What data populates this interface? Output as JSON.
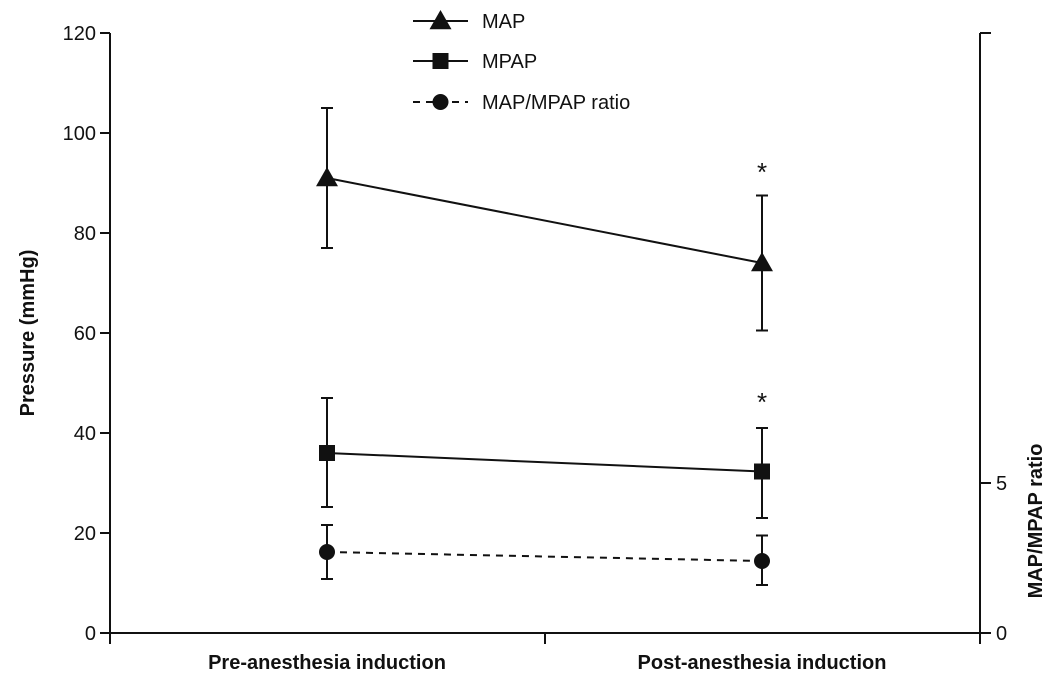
{
  "chart_data": {
    "type": "line",
    "categories": [
      "Pre-anesthesia induction",
      "Post-anesthesia induction"
    ],
    "y_axis_left": {
      "label": "Pressure (mmHg)",
      "range": [
        0,
        120
      ],
      "ticks": [
        "0",
        "20",
        "40",
        "60",
        "80",
        "100",
        "120"
      ]
    },
    "y_axis_right": {
      "label": "MAP/MPAP ratio",
      "range": [
        0,
        5
      ],
      "ticks": [
        "0",
        "5"
      ]
    },
    "series": [
      {
        "name": "MAP",
        "marker": "triangle",
        "line_style": "solid",
        "axis": "left",
        "values": [
          91,
          74
        ],
        "error_low": [
          77,
          60.5
        ],
        "error_high": [
          105,
          87.5
        ]
      },
      {
        "name": "MPAP",
        "marker": "square",
        "line_style": "solid",
        "axis": "left",
        "values": [
          36,
          32.3
        ],
        "error_low": [
          25.2,
          23
        ],
        "error_high": [
          47,
          41
        ]
      },
      {
        "name": "MAP/MPAP ratio",
        "marker": "circle",
        "line_style": "dashed",
        "axis": "right",
        "values": [
          2.7,
          2.4
        ],
        "error_low": [
          1.8,
          1.6
        ],
        "error_high": [
          3.6,
          3.25
        ]
      }
    ],
    "annotations": [
      {
        "text": "*",
        "category_index": 1,
        "y": 94
      },
      {
        "text": "*",
        "category_index": 1,
        "y": 48
      }
    ],
    "legend_position": "top-center",
    "grid": false
  }
}
